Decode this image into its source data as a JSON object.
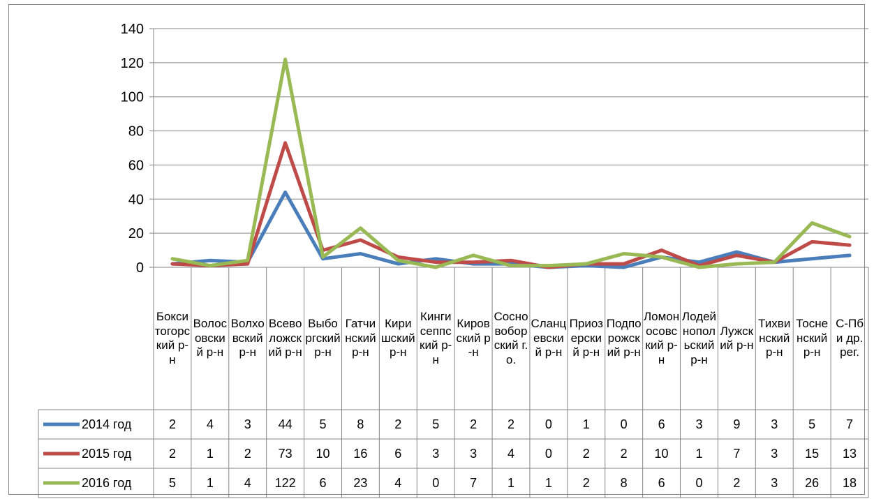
{
  "chart_data": {
    "type": "line",
    "ylim": [
      0,
      140
    ],
    "yticks": [
      0,
      20,
      40,
      60,
      80,
      100,
      120,
      140
    ],
    "grid": true,
    "legend": "data-table",
    "categories": [
      "Бокситогорский р-н",
      "Волосовский р-н",
      "Волховский р-н",
      "Всеволожский р-н",
      "Выборгский р-н",
      "Гатчинский р-н",
      "Киришский р-н",
      "Кингисеппский р-н",
      "Кировский р-н",
      "Сосновоборский г.о.",
      "Сланцевский р-н",
      "Приозерский р-н",
      "Подпорожский р-н",
      "Ломоносовский р-н",
      "Лодейнопольский р-н",
      "Лужский р-н",
      "Тихвинский р-н",
      "Тосненский р-н",
      "С-Пб и др. рег."
    ],
    "series": [
      {
        "name": "2014 год",
        "color": "#4a7ebb",
        "values": [
          2,
          4,
          3,
          44,
          5,
          8,
          2,
          5,
          2,
          2,
          0,
          1,
          0,
          6,
          3,
          9,
          3,
          5,
          7
        ]
      },
      {
        "name": "2015 год",
        "color": "#be4b48",
        "values": [
          2,
          1,
          2,
          73,
          10,
          16,
          6,
          3,
          3,
          4,
          0,
          2,
          2,
          10,
          1,
          7,
          3,
          15,
          13
        ]
      },
      {
        "name": "2016 год",
        "color": "#98b954",
        "values": [
          5,
          1,
          4,
          122,
          6,
          23,
          4,
          0,
          7,
          1,
          1,
          2,
          8,
          6,
          0,
          2,
          3,
          26,
          18
        ]
      }
    ]
  }
}
